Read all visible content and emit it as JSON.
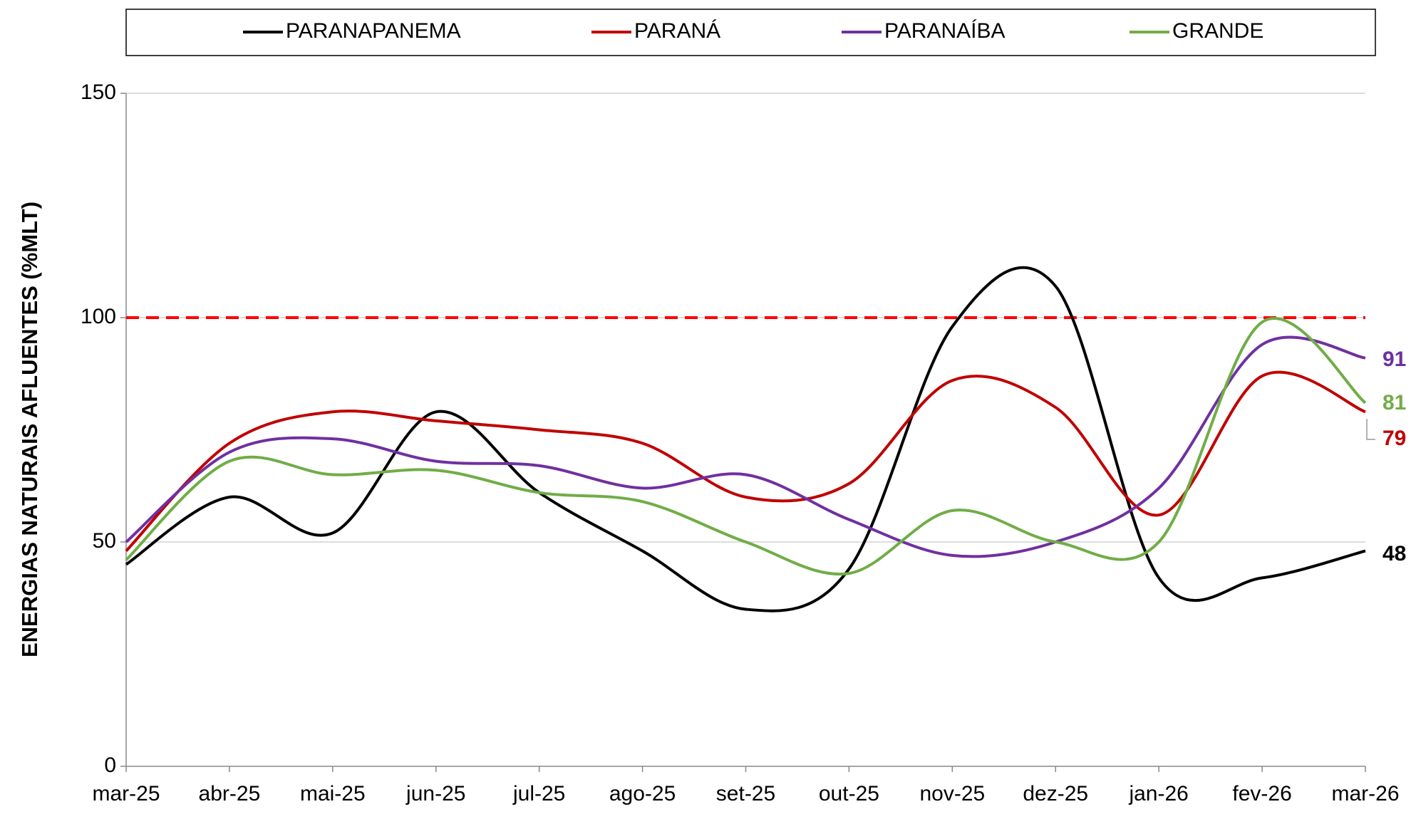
{
  "chart_data": {
    "type": "line",
    "smooth": true,
    "legend": "top",
    "y_label": "ENERGIAS NATURAIS AFLUENTES (%MLT)",
    "categories": [
      "mar-25",
      "abr-25",
      "mai-25",
      "jun-25",
      "jul-25",
      "ago-25",
      "set-25",
      "out-25",
      "nov-25",
      "dez-25",
      "jan-26",
      "fev-26",
      "mar-26"
    ],
    "series": [
      {
        "name": "PARANAPANEMA",
        "color": "#000000",
        "values": [
          45,
          60,
          52,
          79,
          61,
          48,
          35,
          44,
          98,
          107,
          42,
          42,
          48
        ]
      },
      {
        "name": "PARANÁ",
        "color": "#c00000",
        "values": [
          48,
          72,
          79,
          77,
          75,
          72,
          60,
          63,
          86,
          80,
          56,
          87,
          79
        ]
      },
      {
        "name": "PARANAÍBA",
        "color": "#7030a0",
        "values": [
          50,
          70,
          73,
          68,
          67,
          62,
          65,
          55,
          47,
          50,
          62,
          94,
          91
        ]
      },
      {
        "name": "GRANDE",
        "color": "#70ad47",
        "values": [
          46,
          68,
          65,
          66,
          61,
          59,
          50,
          43,
          57,
          50,
          50,
          99,
          81
        ]
      }
    ],
    "reference_line": {
      "value": 100,
      "color": "#ff0000"
    },
    "ylim": [
      0,
      150
    ],
    "yticks": [
      0,
      50,
      100,
      150
    ],
    "grid": true
  }
}
